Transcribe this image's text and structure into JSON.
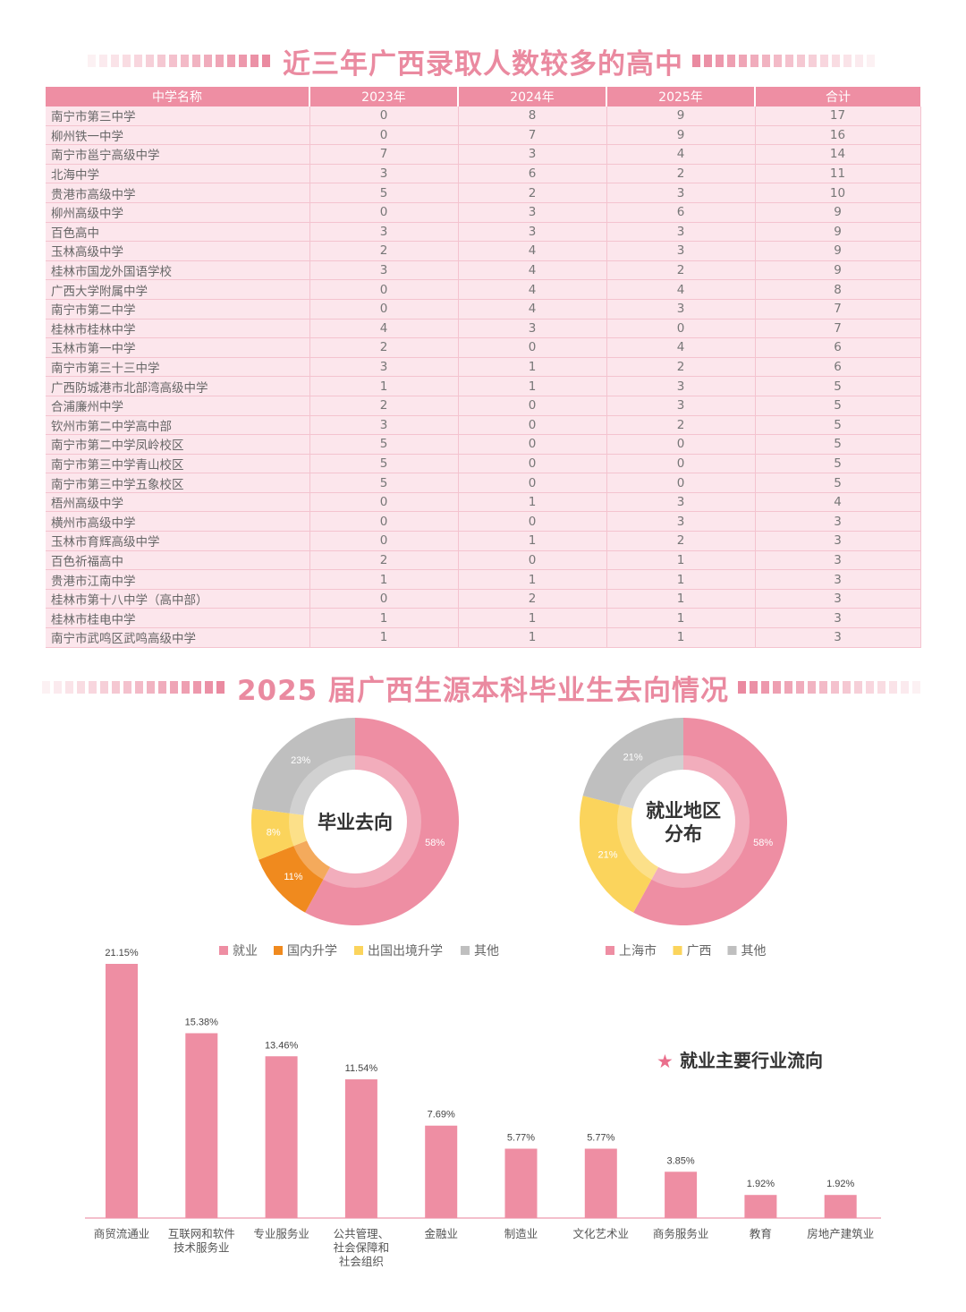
{
  "section1": {
    "title": "近三年广西录取人数较多的高中"
  },
  "table": {
    "headers": [
      "中学名称",
      "2023年",
      "2024年",
      "2025年",
      "合计"
    ],
    "rows": [
      [
        "南宁市第三中学",
        "0",
        "8",
        "9",
        "17"
      ],
      [
        "柳州铁一中学",
        "0",
        "7",
        "9",
        "16"
      ],
      [
        "南宁市邕宁高级中学",
        "7",
        "3",
        "4",
        "14"
      ],
      [
        "北海中学",
        "3",
        "6",
        "2",
        "11"
      ],
      [
        "贵港市高级中学",
        "5",
        "2",
        "3",
        "10"
      ],
      [
        "柳州高级中学",
        "0",
        "3",
        "6",
        "9"
      ],
      [
        "百色高中",
        "3",
        "3",
        "3",
        "9"
      ],
      [
        "玉林高级中学",
        "2",
        "4",
        "3",
        "9"
      ],
      [
        "桂林市国龙外国语学校",
        "3",
        "4",
        "2",
        "9"
      ],
      [
        "广西大学附属中学",
        "0",
        "4",
        "4",
        "8"
      ],
      [
        "南宁市第二中学",
        "0",
        "4",
        "3",
        "7"
      ],
      [
        "桂林市桂林中学",
        "4",
        "3",
        "0",
        "7"
      ],
      [
        "玉林市第一中学",
        "2",
        "0",
        "4",
        "6"
      ],
      [
        "南宁市第三十三中学",
        "3",
        "1",
        "2",
        "6"
      ],
      [
        "广西防城港市北部湾高级中学",
        "1",
        "1",
        "3",
        "5"
      ],
      [
        "合浦廉州中学",
        "2",
        "0",
        "3",
        "5"
      ],
      [
        "钦州市第二中学高中部",
        "3",
        "0",
        "2",
        "5"
      ],
      [
        "南宁市第二中学凤岭校区",
        "5",
        "0",
        "0",
        "5"
      ],
      [
        "南宁市第三中学青山校区",
        "5",
        "0",
        "0",
        "5"
      ],
      [
        "南宁市第三中学五象校区",
        "5",
        "0",
        "0",
        "5"
      ],
      [
        "梧州高级中学",
        "0",
        "1",
        "3",
        "4"
      ],
      [
        "横州市高级中学",
        "0",
        "0",
        "3",
        "3"
      ],
      [
        "玉林市育辉高级中学",
        "0",
        "1",
        "2",
        "3"
      ],
      [
        "百色祈福高中",
        "2",
        "0",
        "1",
        "3"
      ],
      [
        "贵港市江南中学",
        "1",
        "1",
        "1",
        "3"
      ],
      [
        "桂林市第十八中学（高中部）",
        "0",
        "2",
        "1",
        "3"
      ],
      [
        "桂林市桂电中学",
        "1",
        "1",
        "1",
        "3"
      ],
      [
        "南宁市武鸣区武鸣高级中学",
        "1",
        "1",
        "1",
        "3"
      ]
    ]
  },
  "section2": {
    "title": "2025 届广西生源本科毕业生去向情况"
  },
  "chart_data": [
    {
      "type": "pie",
      "title": "毕业去向",
      "labels": [
        "就业",
        "国内升学",
        "出国出境升学",
        "其他"
      ],
      "values": [
        58,
        11,
        8,
        23
      ],
      "value_labels": [
        "58%",
        "11%",
        "8%",
        "23%"
      ],
      "colors": [
        "#ee8ea3",
        "#f08a1e",
        "#fbd45c",
        "#bfbfbf"
      ],
      "legend": "bottom"
    },
    {
      "type": "pie",
      "title": "就业地区分布",
      "title_lines": [
        "就业地区",
        "分布"
      ],
      "labels": [
        "上海市",
        "广西",
        "其他"
      ],
      "values": [
        58,
        21,
        21
      ],
      "value_labels": [
        "58%",
        "21%",
        "21%"
      ],
      "colors": [
        "#ee8ea3",
        "#fbd45c",
        "#bfbfbf"
      ],
      "legend": "bottom"
    },
    {
      "type": "bar",
      "title": "就业主要行业流向",
      "title_marker": "★",
      "categories": [
        "商贸流通业",
        "互联网和软件技术服务业",
        "专业服务业",
        "公共管理、社会保障和社会组织",
        "金融业",
        "制造业",
        "文化艺术业",
        "商务服务业",
        "教育",
        "房地产建筑业"
      ],
      "category_lines": [
        [
          "商贸流通业"
        ],
        [
          "互联网和软件",
          "技术服务业"
        ],
        [
          "专业服务业"
        ],
        [
          "公共管理、",
          "社会保障和",
          "社会组织"
        ],
        [
          "金融业"
        ],
        [
          "制造业"
        ],
        [
          "文化艺术业"
        ],
        [
          "商务服务业"
        ],
        [
          "教育"
        ],
        [
          "房地产建筑业"
        ]
      ],
      "values": [
        21.15,
        15.38,
        13.46,
        11.54,
        7.69,
        5.77,
        5.77,
        3.85,
        1.92,
        1.92
      ],
      "value_labels": [
        "21.15%",
        "15.38%",
        "13.46%",
        "11.54%",
        "7.69%",
        "5.77%",
        "5.77%",
        "3.85%",
        "1.92%",
        "1.92%"
      ],
      "ylim": [
        0,
        21.15
      ],
      "color": "#ee8ea3",
      "grid": false
    }
  ]
}
